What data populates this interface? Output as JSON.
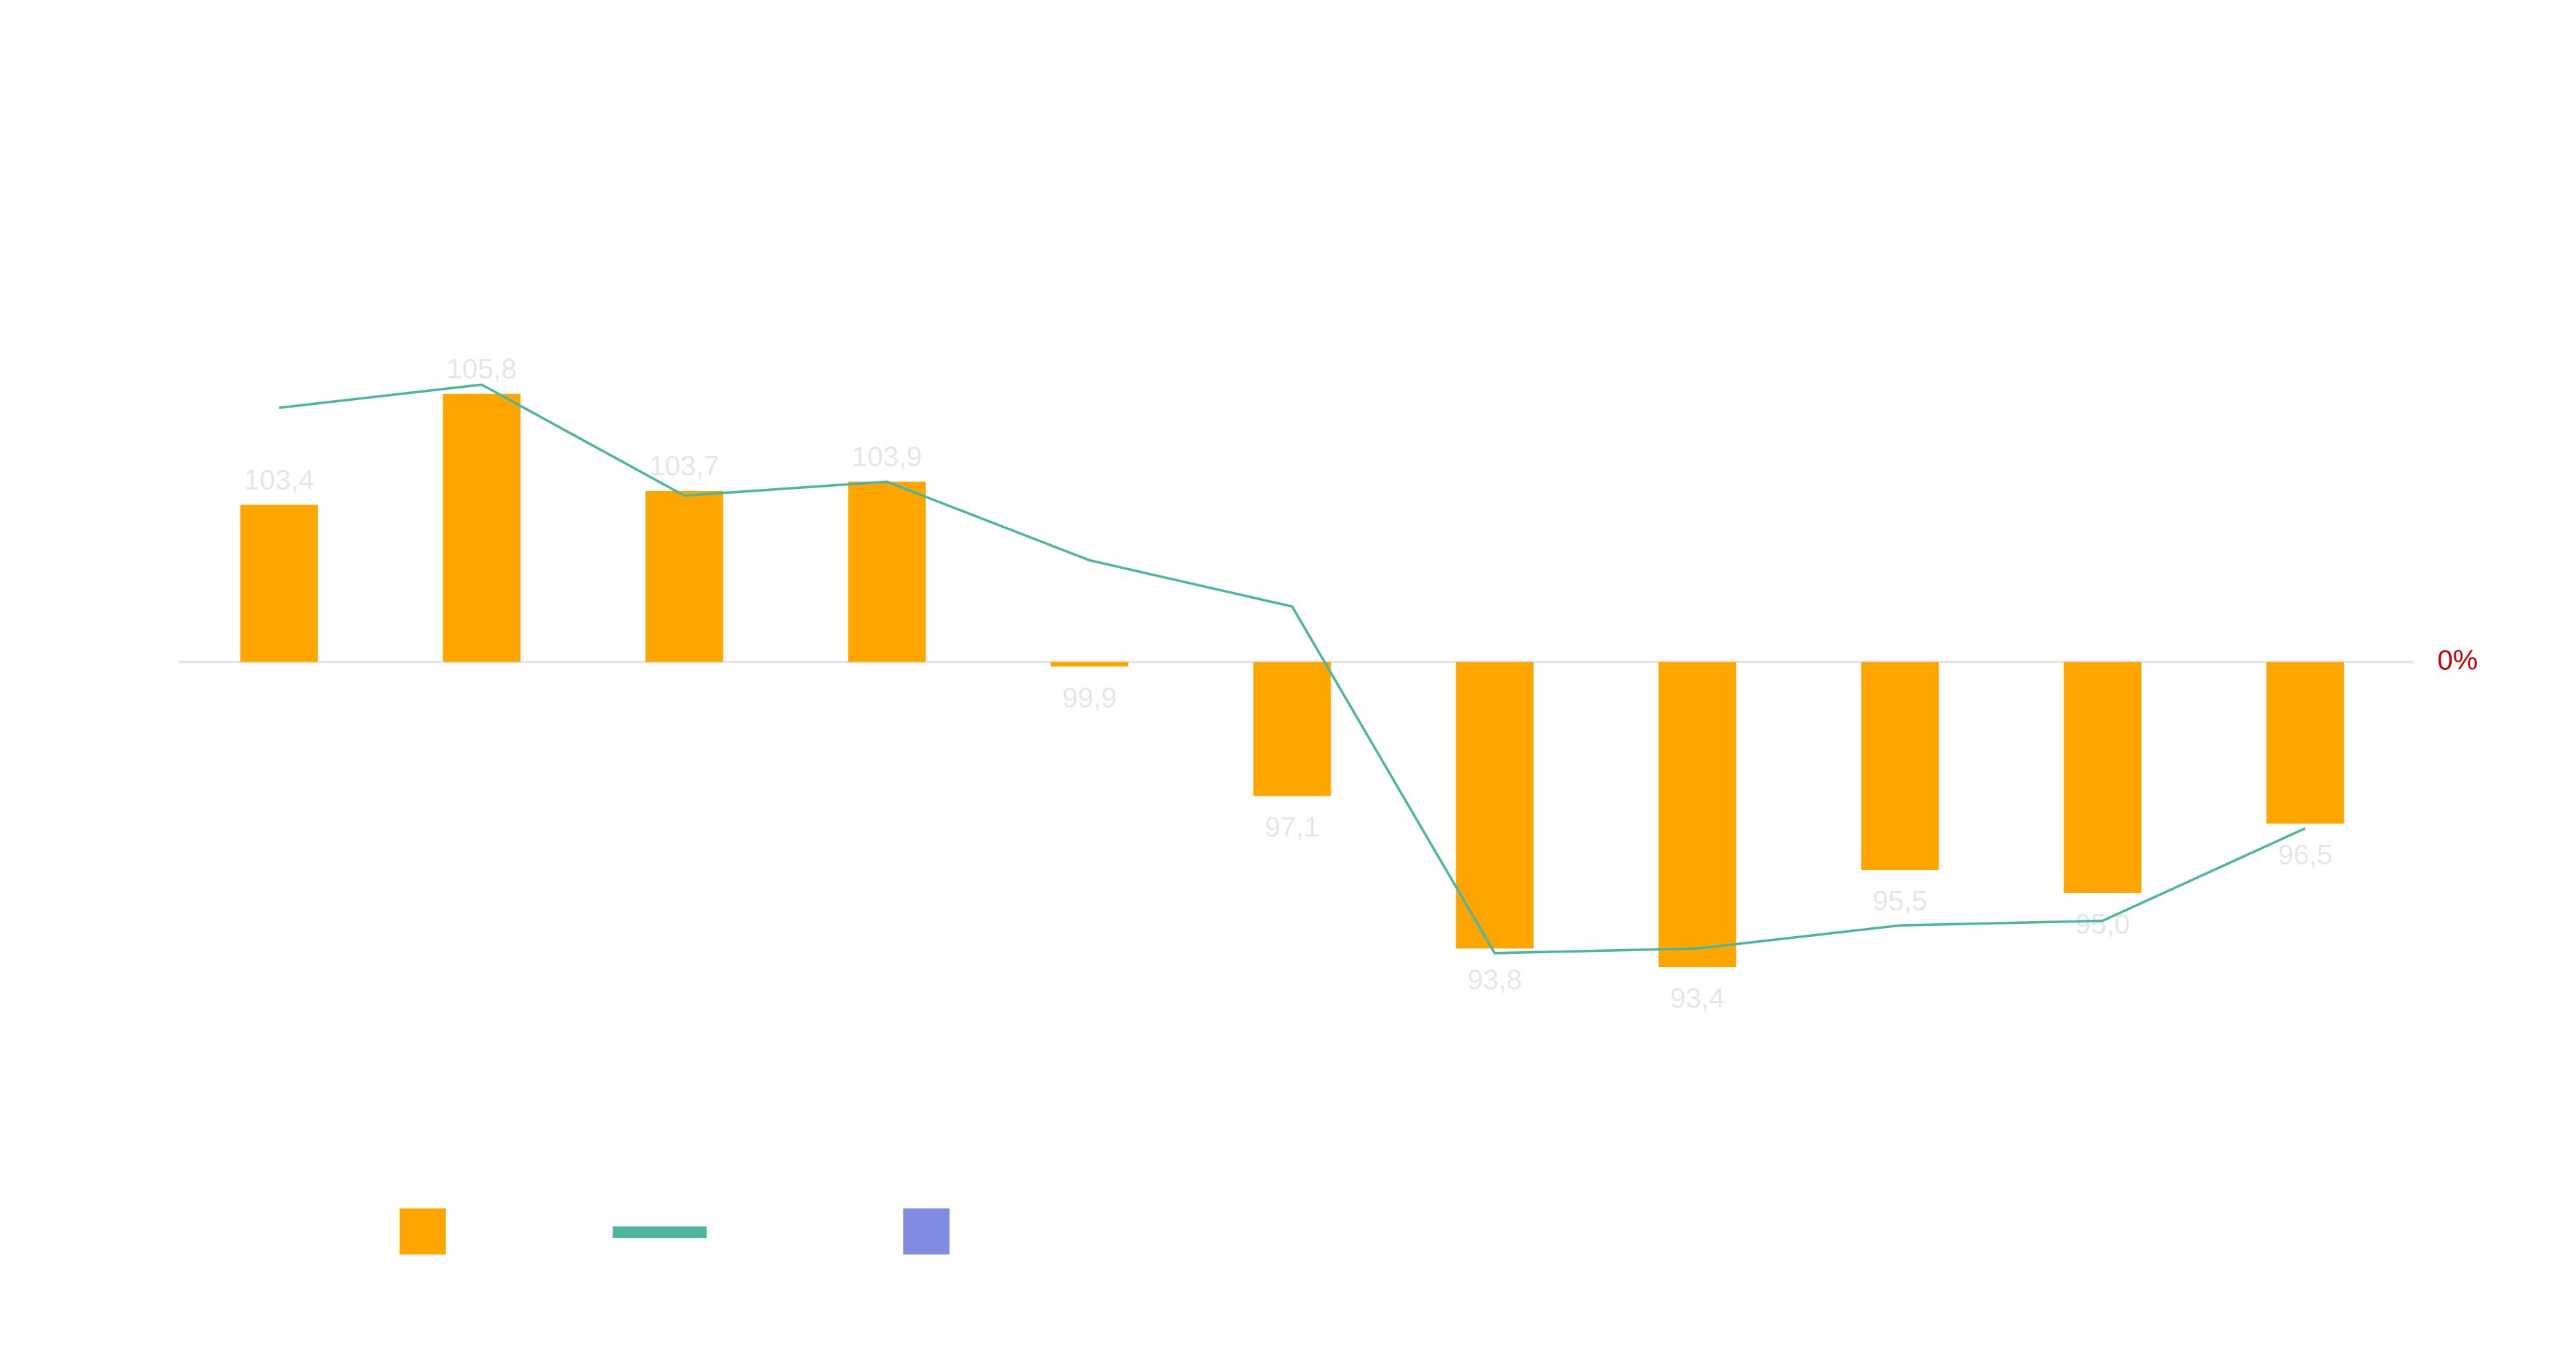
{
  "chart_data": {
    "type": "bar",
    "values": [
      103.4,
      105.8,
      103.7,
      103.9,
      99.9,
      97.1,
      93.8,
      93.4,
      95.5,
      95.0,
      96.5
    ],
    "value_labels": [
      "103,4",
      "105,8",
      "103,7",
      "103,9",
      "99,9",
      "97,1",
      "93,8",
      "93,4",
      "95,5",
      "95,0",
      "96,5"
    ],
    "color": "#ffa500",
    "series": [
      {
        "type": "line",
        "color": "#4db6a3",
        "values": [
          105.5,
          106.0,
          103.6,
          103.9,
          102.2,
          101.2,
          93.7,
          93.8,
          94.3,
          94.4,
          96.4
        ]
      },
      {
        "type": "line",
        "color": "#7f8ce0",
        "values": [
          null,
          null,
          null,
          null,
          null,
          null,
          null,
          null,
          null,
          null,
          null
        ]
      }
    ],
    "ylim": [
      90,
      112
    ],
    "yticks": [
      {
        "value": 100,
        "label": "0%"
      }
    ],
    "tick_color": "#cc0000",
    "grid": false
  }
}
